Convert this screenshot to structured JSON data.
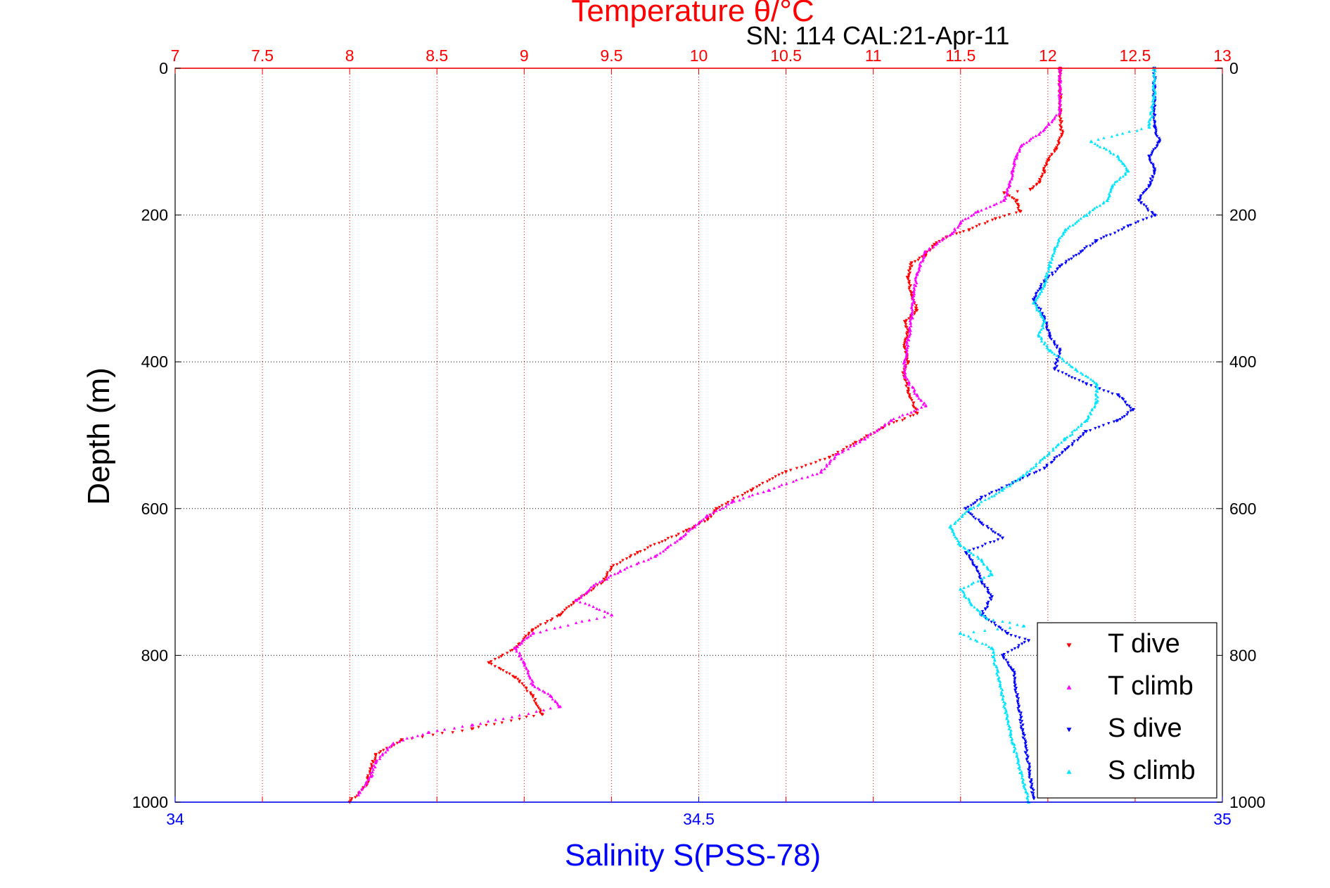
{
  "chart_data": {
    "type": "scatter",
    "title": "SN: 114  CAL:21-Apr-11",
    "top_axis": {
      "label": "Temperature θ/°C",
      "range": [
        7,
        13
      ],
      "ticks": [
        "7",
        "7.5",
        "8",
        "8.5",
        "9",
        "9.5",
        "10",
        "10.5",
        "11",
        "11.5",
        "12",
        "12.5",
        "13"
      ],
      "color": "#ff0000"
    },
    "bottom_axis": {
      "label": "Salinity S(PSS-78)",
      "range": [
        34,
        35
      ],
      "ticks": [
        "34",
        "34.5",
        "35"
      ],
      "color": "#0000ff"
    },
    "y_axis": {
      "label": "Depth (m)",
      "range": [
        0,
        1000
      ],
      "reversed": true,
      "ticks": [
        "0",
        "200",
        "400",
        "600",
        "800",
        "1000"
      ]
    },
    "grid": true,
    "legend_position": "bottom-right",
    "series": [
      {
        "name": "T dive",
        "axis": "temperature",
        "color": "#ff0000",
        "marker": "triangle-down",
        "points": [
          [
            12.07,
            0
          ],
          [
            12.07,
            30
          ],
          [
            12.07,
            60
          ],
          [
            12.08,
            90
          ],
          [
            12.05,
            110
          ],
          [
            12.0,
            125
          ],
          [
            11.98,
            140
          ],
          [
            11.95,
            155
          ],
          [
            11.9,
            165
          ],
          [
            11.75,
            170
          ],
          [
            11.82,
            180
          ],
          [
            11.84,
            195
          ],
          [
            11.7,
            205
          ],
          [
            11.55,
            220
          ],
          [
            11.42,
            230
          ],
          [
            11.35,
            240
          ],
          [
            11.3,
            255
          ],
          [
            11.22,
            265
          ],
          [
            11.2,
            285
          ],
          [
            11.22,
            310
          ],
          [
            11.25,
            330
          ],
          [
            11.18,
            345
          ],
          [
            11.2,
            360
          ],
          [
            11.18,
            380
          ],
          [
            11.2,
            400
          ],
          [
            11.17,
            415
          ],
          [
            11.2,
            440
          ],
          [
            11.25,
            470
          ],
          [
            11.05,
            490
          ],
          [
            10.9,
            510
          ],
          [
            10.75,
            530
          ],
          [
            10.5,
            550
          ],
          [
            10.3,
            575
          ],
          [
            10.1,
            600
          ],
          [
            10.05,
            615
          ],
          [
            9.93,
            630
          ],
          [
            9.65,
            660
          ],
          [
            9.5,
            680
          ],
          [
            9.45,
            700
          ],
          [
            9.3,
            725
          ],
          [
            9.2,
            745
          ],
          [
            9.05,
            765
          ],
          [
            8.95,
            790
          ],
          [
            8.8,
            810
          ],
          [
            8.95,
            830
          ],
          [
            9.05,
            855
          ],
          [
            9.1,
            880
          ],
          [
            8.7,
            900
          ],
          [
            8.3,
            915
          ],
          [
            8.15,
            935
          ],
          [
            8.12,
            955
          ],
          [
            8.1,
            975
          ],
          [
            8.0,
            1000
          ]
        ]
      },
      {
        "name": "T climb",
        "axis": "temperature",
        "color": "#ff00ff",
        "marker": "triangle-up",
        "points": [
          [
            12.07,
            0
          ],
          [
            12.07,
            30
          ],
          [
            12.07,
            60
          ],
          [
            11.95,
            90
          ],
          [
            11.85,
            105
          ],
          [
            11.82,
            120
          ],
          [
            11.8,
            140
          ],
          [
            11.78,
            160
          ],
          [
            11.75,
            180
          ],
          [
            11.6,
            195
          ],
          [
            11.5,
            210
          ],
          [
            11.45,
            225
          ],
          [
            11.3,
            250
          ],
          [
            11.25,
            280
          ],
          [
            11.23,
            310
          ],
          [
            11.22,
            340
          ],
          [
            11.2,
            370
          ],
          [
            11.18,
            400
          ],
          [
            11.18,
            420
          ],
          [
            11.25,
            445
          ],
          [
            11.3,
            460
          ],
          [
            11.1,
            480
          ],
          [
            10.95,
            505
          ],
          [
            10.8,
            525
          ],
          [
            10.7,
            550
          ],
          [
            10.4,
            575
          ],
          [
            10.2,
            590
          ],
          [
            10.05,
            610
          ],
          [
            9.9,
            640
          ],
          [
            9.75,
            665
          ],
          [
            9.55,
            685
          ],
          [
            9.4,
            705
          ],
          [
            9.3,
            725
          ],
          [
            9.5,
            745
          ],
          [
            9.05,
            770
          ],
          [
            8.95,
            790
          ],
          [
            9.0,
            810
          ],
          [
            9.05,
            840
          ],
          [
            9.15,
            855
          ],
          [
            9.2,
            870
          ],
          [
            8.7,
            895
          ],
          [
            8.45,
            905
          ],
          [
            8.25,
            920
          ],
          [
            8.15,
            945
          ],
          [
            8.12,
            965
          ],
          [
            8.05,
            990
          ]
        ]
      },
      {
        "name": "S dive",
        "axis": "salinity",
        "color": "#0000ff",
        "marker": "triangle-down",
        "points": [
          [
            34.935,
            0
          ],
          [
            34.935,
            40
          ],
          [
            34.935,
            80
          ],
          [
            34.94,
            100
          ],
          [
            34.93,
            120
          ],
          [
            34.935,
            140
          ],
          [
            34.93,
            160
          ],
          [
            34.92,
            180
          ],
          [
            34.935,
            200
          ],
          [
            34.91,
            215
          ],
          [
            34.88,
            235
          ],
          [
            34.865,
            250
          ],
          [
            34.845,
            270
          ],
          [
            34.83,
            290
          ],
          [
            34.82,
            315
          ],
          [
            34.83,
            340
          ],
          [
            34.835,
            365
          ],
          [
            34.845,
            385
          ],
          [
            34.84,
            410
          ],
          [
            34.87,
            430
          ],
          [
            34.9,
            445
          ],
          [
            34.915,
            465
          ],
          [
            34.9,
            480
          ],
          [
            34.87,
            495
          ],
          [
            34.85,
            520
          ],
          [
            34.83,
            545
          ],
          [
            34.8,
            565
          ],
          [
            34.77,
            585
          ],
          [
            34.755,
            600
          ],
          [
            34.77,
            620
          ],
          [
            34.79,
            640
          ],
          [
            34.755,
            660
          ],
          [
            34.765,
            680
          ],
          [
            34.77,
            700
          ],
          [
            34.78,
            720
          ],
          [
            34.77,
            745
          ],
          [
            34.795,
            770
          ],
          [
            34.79,
            800
          ],
          [
            34.8,
            820
          ],
          [
            34.815,
            780
          ],
          [
            34.82,
            995
          ]
        ]
      },
      {
        "name": "S climb",
        "axis": "salinity",
        "color": "#00e5ff",
        "marker": "triangle-up",
        "points": [
          [
            34.935,
            0
          ],
          [
            34.935,
            40
          ],
          [
            34.93,
            80
          ],
          [
            34.875,
            100
          ],
          [
            34.9,
            120
          ],
          [
            34.91,
            140
          ],
          [
            34.895,
            160
          ],
          [
            34.89,
            180
          ],
          [
            34.87,
            200
          ],
          [
            34.85,
            220
          ],
          [
            34.84,
            245
          ],
          [
            34.835,
            270
          ],
          [
            34.83,
            295
          ],
          [
            34.82,
            320
          ],
          [
            34.83,
            345
          ],
          [
            34.825,
            365
          ],
          [
            34.835,
            385
          ],
          [
            34.86,
            410
          ],
          [
            34.88,
            430
          ],
          [
            34.88,
            455
          ],
          [
            34.87,
            480
          ],
          [
            34.85,
            505
          ],
          [
            34.83,
            530
          ],
          [
            34.81,
            555
          ],
          [
            34.79,
            575
          ],
          [
            34.76,
            600
          ],
          [
            34.74,
            625
          ],
          [
            34.75,
            650
          ],
          [
            34.77,
            670
          ],
          [
            34.78,
            690
          ],
          [
            34.75,
            710
          ],
          [
            34.76,
            730
          ],
          [
            34.775,
            750
          ],
          [
            34.75,
            770
          ],
          [
            34.78,
            790
          ],
          [
            34.81,
            760
          ],
          [
            34.8,
            920
          ],
          [
            34.815,
            1000
          ]
        ]
      }
    ]
  }
}
